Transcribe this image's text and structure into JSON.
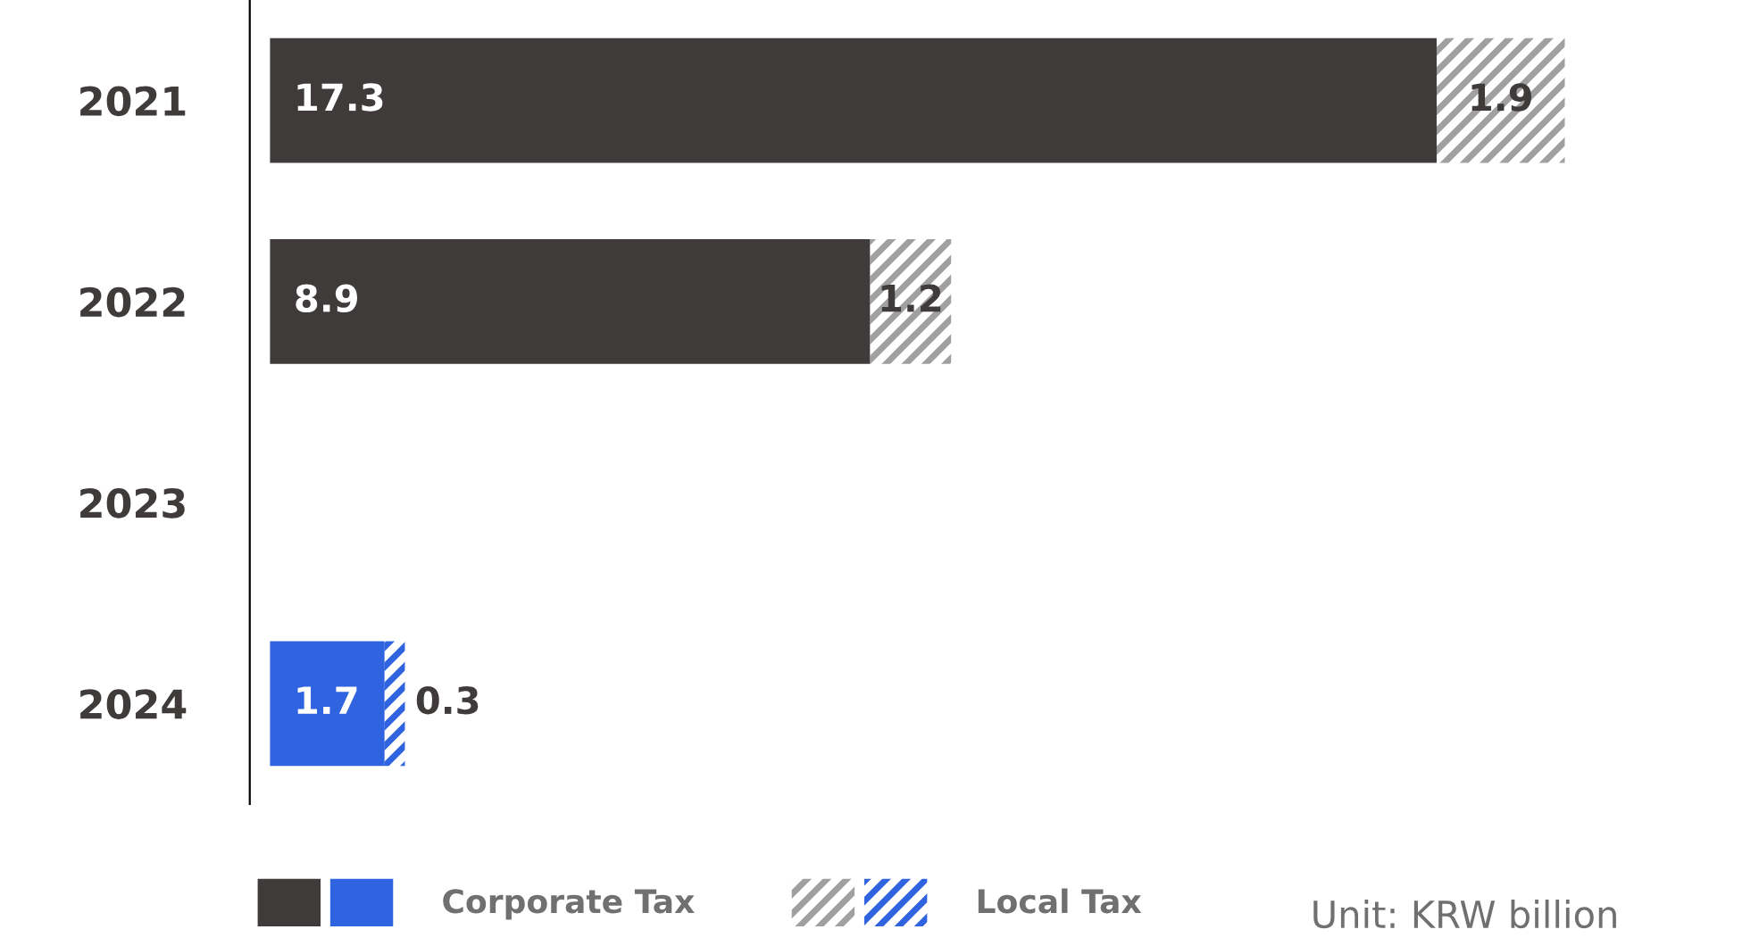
{
  "chart_data": {
    "type": "bar",
    "orientation": "horizontal",
    "stacked": true,
    "data_labels": true,
    "legend": "bottom",
    "grid": false,
    "categories": [
      "2021",
      "2022",
      "2023",
      "2024"
    ],
    "series": [
      {
        "name": "Corporate Tax",
        "color": "#3f3b3a",
        "colors": [
          "#3f3b3a",
          "#3f3b3a",
          null,
          "#2f63e0"
        ],
        "values": [
          17.3,
          8.9,
          null,
          1.7
        ]
      },
      {
        "name": "Local Tax",
        "color": "#a0a0a0",
        "colors": [
          "#a0a0a0",
          "#a0a0a0",
          null,
          "#2f63e0"
        ],
        "values": [
          1.9,
          1.2,
          null,
          0.3
        ]
      }
    ],
    "annotations": [
      "Unit: KRW billion"
    ]
  }
}
